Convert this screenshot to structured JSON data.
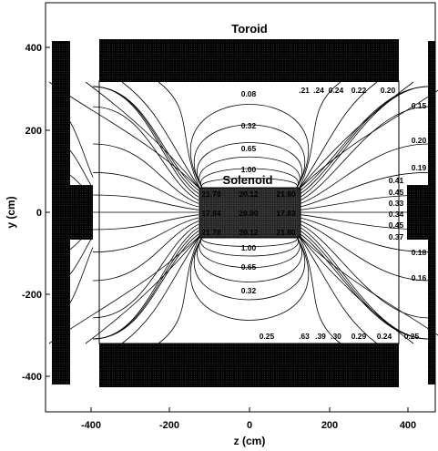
{
  "figure": {
    "axes": {
      "xlabel": "z (cm)",
      "ylabel": "y (cm)",
      "x_ticks": [
        "-400",
        "-200",
        "0",
        "200",
        "400"
      ],
      "y_ticks": [
        "400",
        "200",
        "0",
        "-200",
        "-400"
      ]
    },
    "regions": {
      "toroid": "Toroid",
      "solenoid": "Solenoid"
    },
    "contour_labels": {
      "top_edge": [
        ".21",
        ".24",
        "0.24",
        "0.22",
        "0.20"
      ],
      "upper_inner": [
        "0.08",
        "0.32",
        "0.65",
        "1.00"
      ],
      "lower_inner": [
        "1.00",
        "0.65",
        "0.32"
      ],
      "bottom_edge": [
        "0.25",
        ".63",
        ".39",
        ".30",
        "0.29",
        "0.24",
        "0.25"
      ],
      "right_side": [
        "0.15",
        "0.20",
        "0.19",
        "0.41",
        "0.45",
        "0.33",
        "0.34",
        "0.45",
        "0.37",
        "0.18",
        "0.16"
      ],
      "solenoid_row1": [
        "21.78",
        "20.12",
        "21.80"
      ],
      "solenoid_row2": [
        "17.84",
        "20.00",
        "17.83"
      ],
      "solenoid_row3": [
        "21.78",
        "20.12",
        "21.80"
      ]
    },
    "colors": {
      "ink": "#000000",
      "background": "#ffffff"
    }
  }
}
